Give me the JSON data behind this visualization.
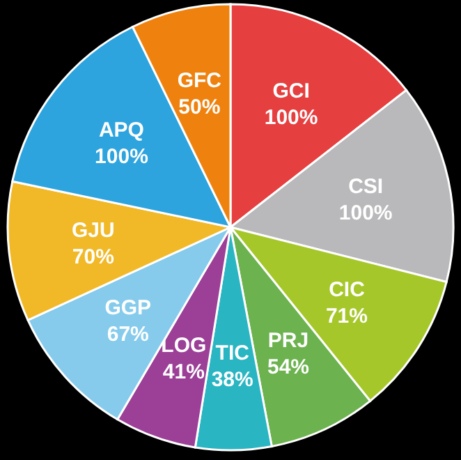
{
  "chart_data": {
    "type": "pie",
    "categories": [
      "GCI",
      "CSI",
      "CIC",
      "PRJ",
      "TIC",
      "LOG",
      "GGP",
      "GJU",
      "APQ",
      "GFC"
    ],
    "values": [
      100,
      100,
      71,
      54,
      38,
      41,
      67,
      70,
      100,
      50
    ],
    "value_labels": [
      "100%",
      "100%",
      "71%",
      "54%",
      "38%",
      "41%",
      "67%",
      "70%",
      "100%",
      "50%"
    ],
    "colors": [
      "#e63f3f",
      "#b9b9bb",
      "#a6c72a",
      "#6cb24f",
      "#2ab5c2",
      "#9b3f97",
      "#86cbec",
      "#f1b928",
      "#2ea4de",
      "#ef820f"
    ]
  }
}
